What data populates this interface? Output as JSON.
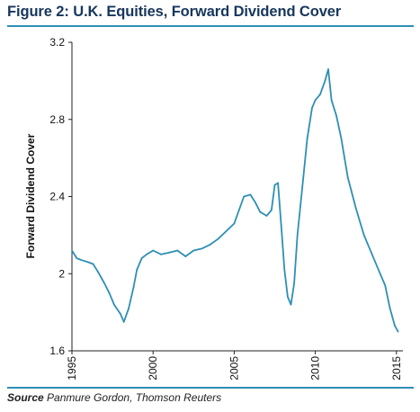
{
  "figure": {
    "title": "Figure 2: U.K. Equities, Forward Dividend Cover",
    "source_label": "Source",
    "source_text": "Panmure Gordon, Thomson Reuters"
  },
  "chart_data": {
    "type": "line",
    "ylabel": "Forward Dividend Cover",
    "xlabel": "",
    "xlim": [
      1995,
      2015.4
    ],
    "ylim": [
      1.6,
      3.2
    ],
    "x_ticks": [
      "1995",
      "2000",
      "2005",
      "2010",
      "2015"
    ],
    "y_ticks": [
      "1.6",
      "2",
      "2.4",
      "2.8",
      "3.2"
    ],
    "grid": false,
    "legend": "none",
    "line_color": "#2e8fb5",
    "series": [
      {
        "x": [
          1995.0,
          1995.3,
          1995.6,
          1996.0,
          1996.3,
          1996.6,
          1997.0,
          1997.3,
          1997.6,
          1998.0,
          1998.2,
          1998.5,
          1998.8,
          1999.0,
          1999.3,
          1999.6,
          2000.0,
          2000.5,
          2001.0,
          2001.5,
          2002.0,
          2002.5,
          2003.0,
          2003.5,
          2004.0,
          2004.5,
          2005.0,
          2005.3,
          2005.6,
          2006.0,
          2006.3,
          2006.6,
          2007.0,
          2007.3,
          2007.5,
          2007.7,
          2007.9,
          2008.1,
          2008.3,
          2008.5,
          2008.7,
          2008.9,
          2009.2,
          2009.5,
          2009.8,
          2010.0,
          2010.3,
          2010.6,
          2010.8,
          2011.0,
          2011.3,
          2011.6,
          2012.0,
          2012.5,
          2013.0,
          2013.5,
          2014.0,
          2014.3,
          2014.6,
          2014.9,
          2015.1
        ],
        "y": [
          2.12,
          2.08,
          2.07,
          2.06,
          2.05,
          2.01,
          1.95,
          1.9,
          1.84,
          1.79,
          1.75,
          1.82,
          1.93,
          2.02,
          2.08,
          2.1,
          2.12,
          2.1,
          2.11,
          2.12,
          2.09,
          2.12,
          2.13,
          2.15,
          2.18,
          2.22,
          2.26,
          2.33,
          2.4,
          2.41,
          2.37,
          2.32,
          2.3,
          2.33,
          2.46,
          2.47,
          2.25,
          2.02,
          1.88,
          1.84,
          1.95,
          2.2,
          2.45,
          2.7,
          2.86,
          2.9,
          2.93,
          3.0,
          3.06,
          2.9,
          2.82,
          2.7,
          2.5,
          2.34,
          2.2,
          2.1,
          2.0,
          1.94,
          1.82,
          1.73,
          1.7
        ]
      }
    ]
  }
}
